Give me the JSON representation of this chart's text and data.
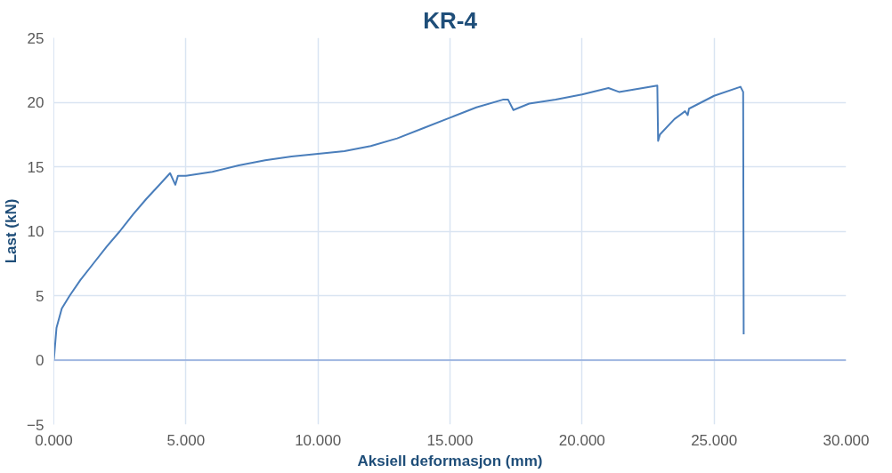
{
  "chart_data": {
    "type": "line",
    "title": "KR-4",
    "xlabel": "Aksiell deformasjon (mm)",
    "ylabel": "Last (kN)",
    "x": [
      0,
      0.1,
      0.3,
      0.6,
      1.0,
      1.5,
      2.0,
      2.5,
      3.0,
      3.5,
      4.0,
      4.4,
      4.6,
      4.7,
      5.0,
      6.0,
      7.0,
      8.0,
      9.0,
      10.0,
      11.0,
      12.0,
      13.0,
      14.0,
      15.0,
      16.0,
      17.0,
      17.2,
      17.4,
      18.0,
      19.0,
      20.0,
      21.0,
      21.4,
      22.0,
      22.85,
      22.88,
      22.95,
      23.5,
      23.9,
      24.0,
      24.05,
      25.0,
      26.0,
      26.1,
      26.12
    ],
    "series": [
      {
        "color": "#4a7ebb",
        "values": [
          0,
          2.5,
          4,
          5,
          6.2,
          7.5,
          8.8,
          10,
          11.3,
          12.5,
          13.6,
          14.5,
          13.6,
          14.3,
          14.3,
          14.6,
          15.1,
          15.5,
          15.8,
          16.0,
          16.2,
          16.6,
          17.2,
          18.0,
          18.8,
          19.6,
          20.2,
          20.2,
          19.4,
          19.9,
          20.2,
          20.6,
          21.1,
          20.8,
          21.0,
          21.3,
          17.0,
          17.5,
          18.7,
          19.3,
          19.0,
          19.5,
          20.5,
          21.2,
          20.8,
          2.0
        ]
      }
    ],
    "xlim": [
      0,
      30
    ],
    "ylim": [
      -5,
      25
    ],
    "xticks": [
      {
        "value": 0,
        "label": "0.000"
      },
      {
        "value": 5,
        "label": "5.000"
      },
      {
        "value": 10,
        "label": "10.000"
      },
      {
        "value": 15,
        "label": "15.000"
      },
      {
        "value": 20,
        "label": "20.000"
      },
      {
        "value": 25,
        "label": "25.000"
      },
      {
        "value": 30,
        "label": "30.000"
      }
    ],
    "yticks": [
      -5,
      0,
      5,
      10,
      15,
      20,
      25
    ],
    "ref_lines": [
      {
        "axis": "y",
        "value": 0,
        "color": "#8eaadb"
      }
    ],
    "grid": true,
    "marker": "none",
    "line_style": "solid"
  }
}
